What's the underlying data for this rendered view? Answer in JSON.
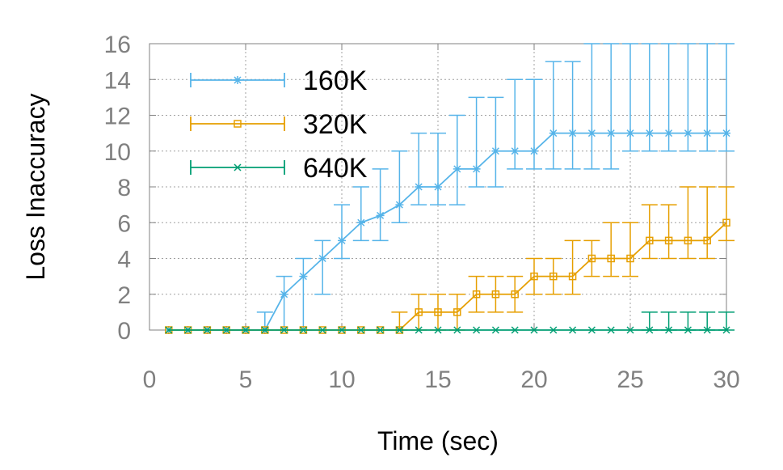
{
  "chart_data": {
    "type": "line",
    "xlabel": "Time (sec)",
    "ylabel": "Loss Inaccuracy",
    "xlim": [
      0,
      30
    ],
    "ylim": [
      0,
      16
    ],
    "xticks": [
      "0",
      "5",
      "10",
      "15",
      "20",
      "25",
      "30"
    ],
    "yticks": [
      "0",
      "2",
      "4",
      "6",
      "8",
      "10",
      "12",
      "14",
      "16"
    ],
    "grid": true,
    "legend_position": "top-left",
    "x": [
      1,
      2,
      3,
      4,
      5,
      6,
      7,
      8,
      9,
      10,
      11,
      12,
      13,
      14,
      15,
      16,
      17,
      18,
      19,
      20,
      21,
      22,
      23,
      24,
      25,
      26,
      27,
      28,
      29,
      30
    ],
    "series": [
      {
        "name": "160K",
        "color": "#56b4e9",
        "marker": "star",
        "values": [
          0,
          0,
          0,
          0,
          0,
          0,
          2,
          3,
          4,
          5,
          6,
          6.4,
          7,
          8,
          8,
          9,
          9,
          10,
          10,
          10,
          11,
          11,
          11,
          11,
          11,
          11,
          11,
          11,
          11,
          11
        ],
        "err_low": [
          0,
          0,
          0,
          0,
          0,
          0,
          0,
          0,
          2,
          4,
          5,
          5,
          6,
          7,
          7,
          7,
          8,
          8,
          9,
          9,
          9,
          9,
          9,
          9,
          10,
          10,
          10,
          10,
          10,
          10
        ],
        "err_high": [
          0,
          0,
          0,
          0,
          0,
          1,
          3,
          4,
          5,
          7,
          8,
          9,
          10,
          11,
          11,
          12,
          13,
          13,
          14,
          14,
          15,
          15,
          16,
          16,
          16,
          16,
          16,
          16,
          16,
          16
        ]
      },
      {
        "name": "320K",
        "color": "#e69f00",
        "marker": "square",
        "values": [
          0,
          0,
          0,
          0,
          0,
          0,
          0,
          0,
          0,
          0,
          0,
          0,
          0,
          1,
          1,
          1,
          2,
          2,
          2,
          3,
          3,
          3,
          4,
          4,
          4,
          5,
          5,
          5,
          5,
          6
        ],
        "err_low": [
          0,
          0,
          0,
          0,
          0,
          0,
          0,
          0,
          0,
          0,
          0,
          0,
          0,
          0,
          0,
          0,
          1,
          1,
          1,
          2,
          2,
          2,
          3,
          3,
          3,
          4,
          4,
          4,
          4,
          5
        ],
        "err_high": [
          0,
          0,
          0,
          0,
          0,
          0,
          0,
          0,
          0,
          0,
          0,
          0,
          1,
          2,
          2,
          2,
          3,
          3,
          3,
          4,
          4,
          5,
          5,
          6,
          6,
          7,
          7,
          8,
          8,
          8
        ]
      },
      {
        "name": "640K",
        "color": "#009e73",
        "marker": "x",
        "values": [
          0,
          0,
          0,
          0,
          0,
          0,
          0,
          0,
          0,
          0,
          0,
          0,
          0,
          0,
          0,
          0,
          0,
          0,
          0,
          0,
          0,
          0,
          0,
          0,
          0,
          0,
          0,
          0,
          0,
          0
        ],
        "err_low": [
          0,
          0,
          0,
          0,
          0,
          0,
          0,
          0,
          0,
          0,
          0,
          0,
          0,
          0,
          0,
          0,
          0,
          0,
          0,
          0,
          0,
          0,
          0,
          0,
          0,
          0,
          0,
          0,
          0,
          0
        ],
        "err_high": [
          0,
          0,
          0,
          0,
          0,
          0,
          0,
          0,
          0,
          0,
          0,
          0,
          0,
          0,
          0,
          0,
          0,
          0,
          0,
          0,
          0,
          0,
          0,
          0,
          0,
          1,
          1,
          1,
          1,
          1
        ]
      }
    ]
  }
}
